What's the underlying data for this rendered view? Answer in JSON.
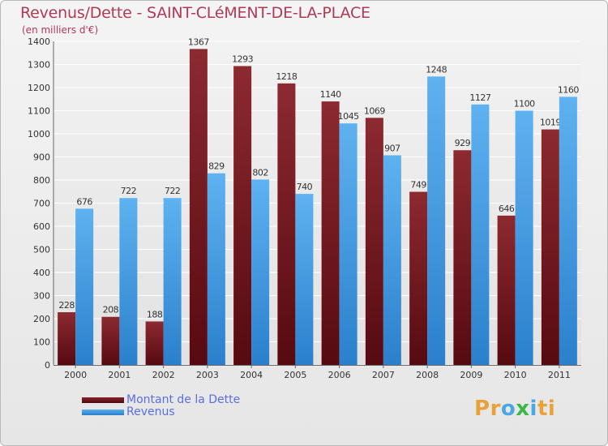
{
  "chart_data": {
    "type": "bar",
    "title": "Revenus/Dette - SAINT-CLéMENT-DE-LA-PLACE",
    "subtitle": "(en milliers d'€)",
    "categories": [
      "2000",
      "2001",
      "2002",
      "2003",
      "2004",
      "2005",
      "2006",
      "2007",
      "2008",
      "2009",
      "2010",
      "2011"
    ],
    "series": [
      {
        "name": "Montant de la Dette",
        "color": "#7a1218",
        "values": [
          228,
          208,
          188,
          1367,
          1293,
          1218,
          1140,
          1069,
          749,
          929,
          646,
          1019
        ]
      },
      {
        "name": "Revenus",
        "color": "#3d9ce6",
        "values": [
          676,
          722,
          722,
          829,
          802,
          740,
          1045,
          907,
          1248,
          1127,
          1100,
          1160
        ]
      }
    ],
    "yticks": [
      0,
      100,
      200,
      300,
      400,
      500,
      600,
      700,
      800,
      900,
      1000,
      1100,
      1200,
      1300,
      1400
    ],
    "ylim": [
      0,
      1400
    ],
    "grid": true,
    "legend_position": "bottom-left"
  },
  "logo_text": "Proxiti"
}
